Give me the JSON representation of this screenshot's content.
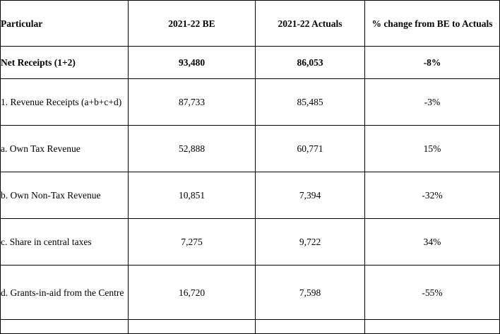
{
  "table": {
    "headers": {
      "particular": "Particular",
      "be": "2021-22 BE",
      "actuals": "2021-22 Actuals",
      "change": "% change from BE to Actuals"
    },
    "rows": [
      {
        "particular": "Net Receipts (1+2)",
        "be": "93,480",
        "actuals": "86,053",
        "change": "-8%"
      },
      {
        "particular": "1.  Revenue Receipts (a+b+c+d)",
        "be": "87,733",
        "actuals": "85,485",
        "change": "-3%"
      },
      {
        "particular": "a.  Own Tax Revenue",
        "be": "52,888",
        "actuals": "60,771",
        "change": "15%"
      },
      {
        "particular": "b.  Own Non-Tax Revenue",
        "be": "10,851",
        "actuals": "7,394",
        "change": "-32%"
      },
      {
        "particular": "c.  Share in central taxes",
        "be": "7,275",
        "actuals": "9,722",
        "change": "34%"
      },
      {
        "particular": "d.  Grants-in-aid from the Centre",
        "be": "16,720",
        "actuals": "7,598",
        "change": "-55%"
      }
    ]
  }
}
